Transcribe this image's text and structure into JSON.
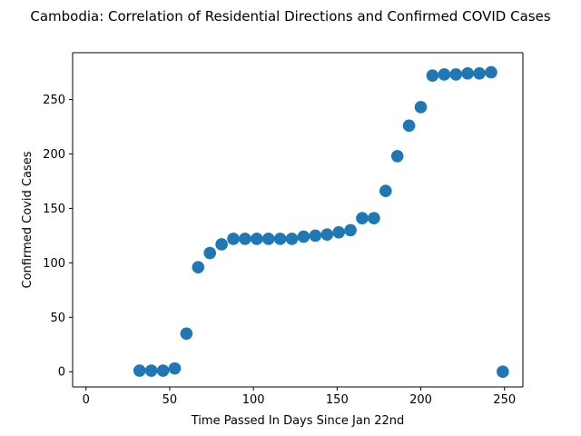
{
  "chart_data": {
    "type": "scatter",
    "title": "Cambodia: Correlation of Residential Directions and Confirmed COVID Cases",
    "xlabel": "Time Passed In Days Since Jan 22nd",
    "ylabel": "Confirmed Covid Cases",
    "xlim": [
      -8,
      261
    ],
    "ylim": [
      -14,
      293
    ],
    "xticks": [
      0,
      50,
      100,
      150,
      200,
      250
    ],
    "yticks": [
      0,
      50,
      100,
      150,
      200,
      250
    ],
    "grid": false,
    "marker_color": "#1f77b4",
    "series": [
      {
        "x": [
          32,
          39,
          46,
          53,
          60,
          67,
          74,
          81,
          88,
          95,
          102,
          109,
          116,
          123,
          130,
          137,
          144,
          151,
          158,
          165,
          172,
          179,
          186,
          193,
          200,
          207,
          214,
          221,
          228,
          235,
          242,
          249
        ],
        "y": [
          1,
          1,
          1,
          3,
          35,
          96,
          109,
          117,
          122,
          122,
          122,
          122,
          122,
          122,
          124,
          125,
          126,
          128,
          130,
          141,
          141,
          166,
          198,
          226,
          243,
          272,
          273,
          273,
          274,
          274,
          275,
          0
        ]
      }
    ]
  }
}
